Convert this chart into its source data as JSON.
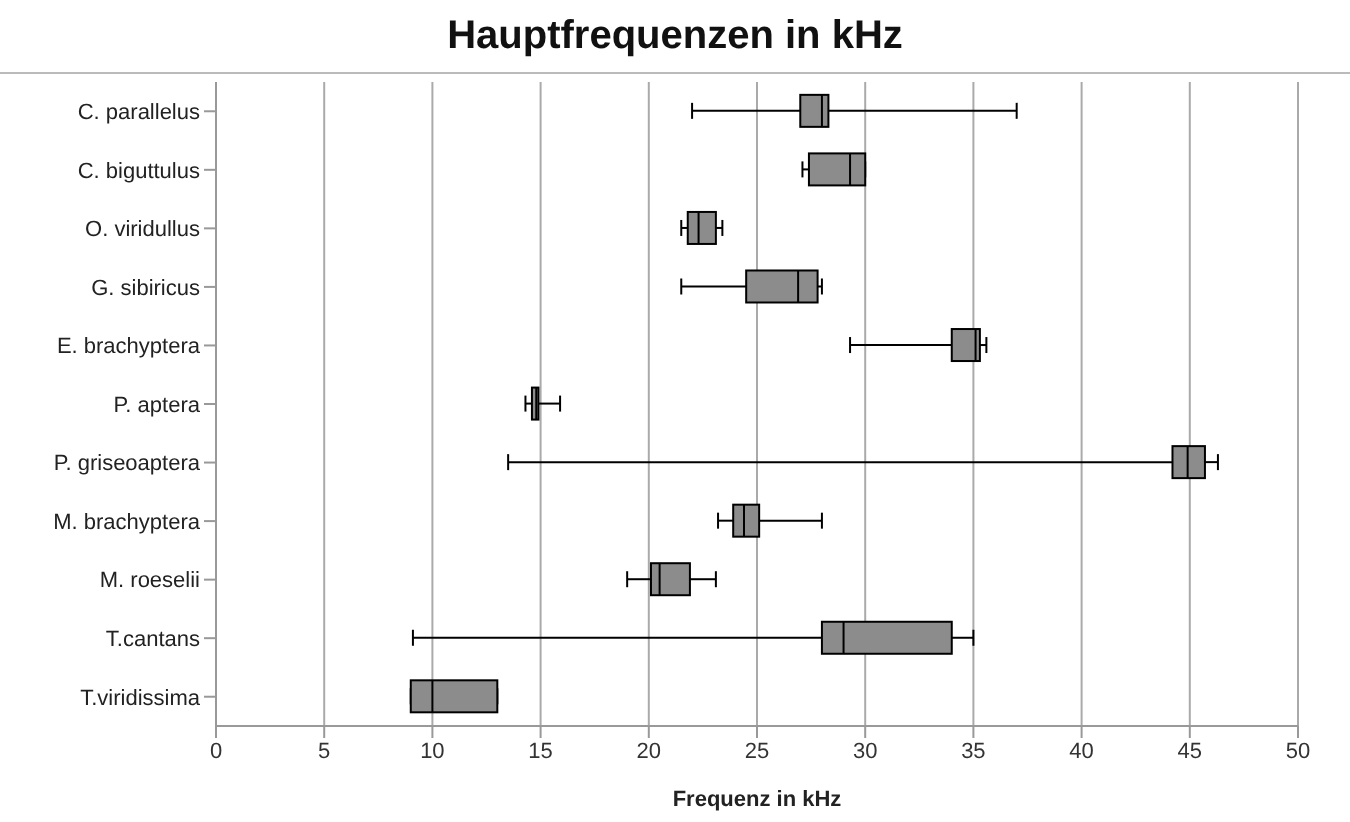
{
  "chart_data": {
    "type": "box",
    "orientation": "horizontal",
    "title": "Hauptfrequenzen in kHz",
    "xlabel": "Frequenz in kHz",
    "categories": [
      "C. parallelus",
      "C. biguttulus",
      "O. viridullus",
      "G. sibiricus",
      "E. brachyptera",
      "P. aptera",
      "P. griseoaptera",
      "M. brachyptera",
      "M. roeselii",
      "T.cantans",
      "T.viridissima"
    ],
    "boxes": [
      {
        "low": 22,
        "q1": 27,
        "median": 28,
        "q3": 28.3,
        "high": 37
      },
      {
        "low": 27.1,
        "q1": 27.4,
        "median": 29.3,
        "q3": 30,
        "high": 30
      },
      {
        "low": 21.5,
        "q1": 21.8,
        "median": 22.3,
        "q3": 23.1,
        "high": 23.4
      },
      {
        "low": 21.5,
        "q1": 24.5,
        "median": 26.9,
        "q3": 27.8,
        "high": 28
      },
      {
        "low": 29.3,
        "q1": 34,
        "median": 35.1,
        "q3": 35.3,
        "high": 35.6
      },
      {
        "low": 14.3,
        "q1": 14.6,
        "median": 14.8,
        "q3": 14.9,
        "high": 15.9
      },
      {
        "low": 13.5,
        "q1": 44.2,
        "median": 44.9,
        "q3": 45.7,
        "high": 46.3
      },
      {
        "low": 23.2,
        "q1": 23.9,
        "median": 24.4,
        "q3": 25.1,
        "high": 28
      },
      {
        "low": 19,
        "q1": 20.1,
        "median": 20.5,
        "q3": 21.9,
        "high": 23.1
      },
      {
        "low": 9.1,
        "q1": 28,
        "median": 29,
        "q3": 34,
        "high": 35
      },
      {
        "low": 9,
        "q1": 9,
        "median": 10,
        "q3": 13,
        "high": 13
      }
    ],
    "color": "#8c8c8c",
    "xlim": [
      0,
      50
    ],
    "xticks": [
      0,
      5,
      10,
      15,
      20,
      25,
      30,
      35,
      40,
      45,
      50
    ],
    "grid": "x"
  }
}
